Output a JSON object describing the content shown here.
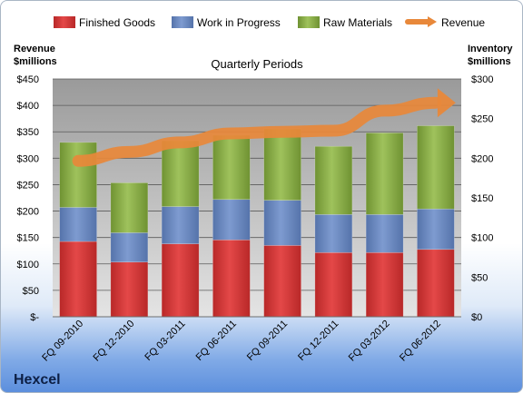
{
  "chart_data": {
    "type": "bar",
    "stacked": true,
    "subtitle": "Quarterly Periods",
    "brand": "Hexcel",
    "y_left_label": [
      "Revenue",
      "$millions"
    ],
    "y_right_label": [
      "Inventory",
      "$millions"
    ],
    "y_left_ticks": [
      "$-",
      "$50",
      "$100",
      "$150",
      "$200",
      "$250",
      "$300",
      "$350",
      "$400",
      "$450"
    ],
    "y_right_ticks": [
      "$0",
      "$50",
      "$100",
      "$150",
      "$200",
      "$250",
      "$300"
    ],
    "y_left_lim": [
      0,
      450
    ],
    "y_right_lim": [
      0,
      300
    ],
    "categories": [
      "FQ 09-2010",
      "FQ 12-2010",
      "FQ 03-2011",
      "FQ 06-2011",
      "FQ 09-2011",
      "FQ 12-2011",
      "FQ 03-2012",
      "FQ 06-2012"
    ],
    "series": [
      {
        "name": "Finished Goods",
        "axis": "right",
        "color": "#d63a3a",
        "values": [
          95,
          69,
          92,
          97,
          90,
          81,
          81,
          85
        ]
      },
      {
        "name": "Work in Progress",
        "axis": "right",
        "color": "#6b8ac2",
        "values": [
          43,
          37,
          47,
          51,
          57,
          48,
          48,
          51
        ]
      },
      {
        "name": "Raw Materials",
        "axis": "right",
        "color": "#8fb34f",
        "values": [
          82,
          63,
          83,
          81,
          90,
          86,
          103,
          105
        ]
      },
      {
        "name": "Revenue",
        "type": "line",
        "axis": "left",
        "color": "#e8883a",
        "values": [
          295,
          312,
          330,
          347,
          350,
          352,
          390,
          405
        ]
      }
    ],
    "grid": true,
    "legend": "top"
  }
}
